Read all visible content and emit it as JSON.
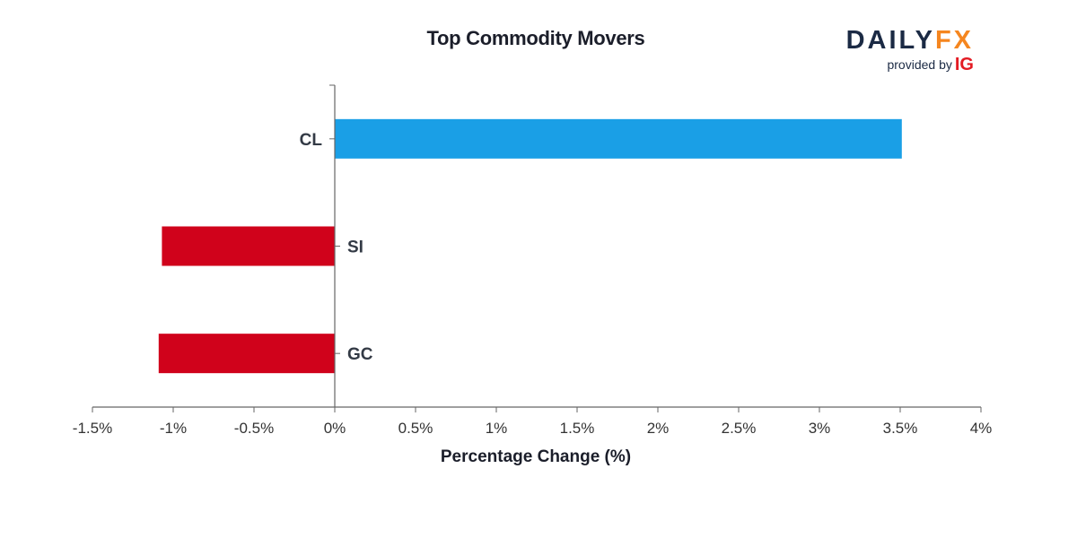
{
  "header": {
    "title": "Top Commodity Movers"
  },
  "logo": {
    "brand_daily": "DAILY",
    "brand_fx": "FX",
    "provided_by": "provided by",
    "provider": "IG",
    "colors": {
      "daily": "#1b2a44",
      "fx": "#f5861f",
      "provider": "#e31b23"
    }
  },
  "chart_data": {
    "type": "bar",
    "orientation": "horizontal",
    "title": "Top Commodity Movers",
    "xlabel": "Percentage Change (%)",
    "ylabel": "",
    "categories": [
      "CL",
      "SI",
      "GC"
    ],
    "values": [
      3.51,
      -1.07,
      -1.09
    ],
    "xlim": [
      -1.5,
      4
    ],
    "xticks": [
      -1.5,
      -1,
      -0.5,
      0,
      0.5,
      1,
      1.5,
      2,
      2.5,
      3,
      3.5,
      4
    ],
    "xtick_labels": [
      "-1.5%",
      "-1%",
      "-0.5%",
      "0%",
      "0.5%",
      "1%",
      "1.5%",
      "2%",
      "2.5%",
      "3%",
      "3.5%",
      "4%"
    ],
    "grid": false,
    "legend": "none",
    "colors": {
      "positive": "#1a9fe6",
      "negative": "#d0021b",
      "axis": "#666666"
    }
  }
}
